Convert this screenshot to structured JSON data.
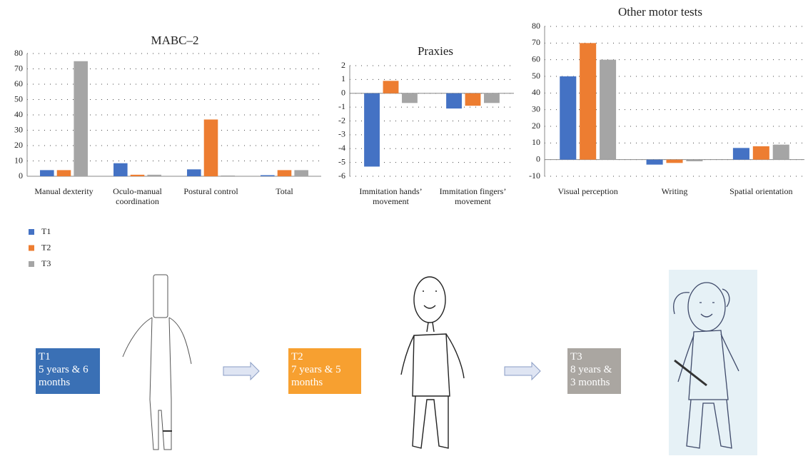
{
  "chart_data": [
    {
      "type": "bar",
      "title": "MABC–2",
      "categories": [
        "Manual dexterity",
        "Oculo-manual coordination",
        "Postural control",
        "Total"
      ],
      "series": [
        {
          "name": "T1",
          "color": "#4472c4",
          "values": [
            4,
            8.5,
            4.5,
            0.7
          ]
        },
        {
          "name": "T2",
          "color": "#ed7d31",
          "values": [
            4,
            1,
            37,
            4
          ]
        },
        {
          "name": "T3",
          "color": "#a5a5a5",
          "values": [
            75,
            1,
            0.5,
            4
          ]
        }
      ],
      "ylim": [
        0,
        80
      ],
      "yticks": [
        0,
        10,
        20,
        30,
        40,
        50,
        60,
        70,
        80
      ],
      "grid": true
    },
    {
      "type": "bar",
      "title": "Praxies",
      "categories": [
        "Immitation hands’ movement",
        "Immitation fingers’ movement"
      ],
      "series": [
        {
          "name": "T1",
          "color": "#4472c4",
          "values": [
            -5.3,
            -1.1
          ]
        },
        {
          "name": "T2",
          "color": "#ed7d31",
          "values": [
            0.9,
            -0.9
          ]
        },
        {
          "name": "T3",
          "color": "#a5a5a5",
          "values": [
            -0.7,
            -0.7
          ]
        }
      ],
      "ylim": [
        -6,
        2
      ],
      "yticks": [
        -6,
        -5,
        -4,
        -3,
        -2,
        -1,
        0,
        1,
        2
      ],
      "grid": true
    },
    {
      "type": "bar",
      "title": "Other motor tests",
      "categories": [
        "Visual perception",
        "Writing",
        "Spatial orientation"
      ],
      "series": [
        {
          "name": "T1",
          "color": "#4472c4",
          "values": [
            50,
            -3,
            7
          ]
        },
        {
          "name": "T2",
          "color": "#ed7d31",
          "values": [
            70,
            -2,
            8
          ]
        },
        {
          "name": "T3",
          "color": "#a5a5a5",
          "values": [
            60,
            -1,
            9
          ]
        }
      ],
      "ylim": [
        -10,
        80
      ],
      "yticks": [
        -10,
        0,
        10,
        20,
        30,
        40,
        50,
        60,
        70,
        80
      ],
      "grid": true
    }
  ],
  "timeline": [
    {
      "label": "T1",
      "text": "5 years & 6 months",
      "color": "#3a70b5"
    },
    {
      "label": "T2",
      "text": "7 years & 5 months",
      "color": "#f7a030"
    },
    {
      "label": "T3",
      "text": "8 years & 3 months",
      "color": "#aaa6a1"
    }
  ]
}
